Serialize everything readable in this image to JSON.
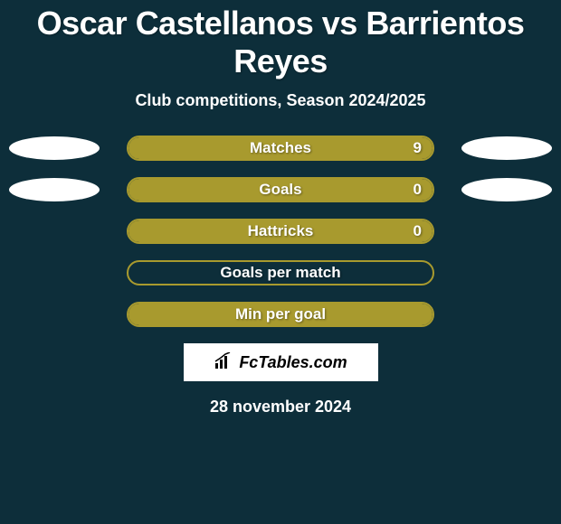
{
  "title": "Oscar Castellanos vs Barrientos Reyes",
  "subtitle": "Club competitions, Season 2024/2025",
  "colors": {
    "background": "#0d2e3a",
    "bar_border": "#a89a2e",
    "bar_fill": "#a89a2e",
    "ellipse": "#ffffff",
    "text": "#ffffff"
  },
  "stats": [
    {
      "label": "Matches",
      "value": "9",
      "fill_percent": 100,
      "show_left_ellipse": true,
      "show_right_ellipse": true,
      "show_value": true
    },
    {
      "label": "Goals",
      "value": "0",
      "fill_percent": 100,
      "show_left_ellipse": true,
      "show_right_ellipse": true,
      "show_value": true
    },
    {
      "label": "Hattricks",
      "value": "0",
      "fill_percent": 100,
      "show_left_ellipse": false,
      "show_right_ellipse": false,
      "show_value": true
    },
    {
      "label": "Goals per match",
      "value": "",
      "fill_percent": 0,
      "show_left_ellipse": false,
      "show_right_ellipse": false,
      "show_value": false
    },
    {
      "label": "Min per goal",
      "value": "",
      "fill_percent": 100,
      "show_left_ellipse": false,
      "show_right_ellipse": false,
      "show_value": false
    }
  ],
  "logo_text": "FcTables.com",
  "date": "28 november 2024"
}
